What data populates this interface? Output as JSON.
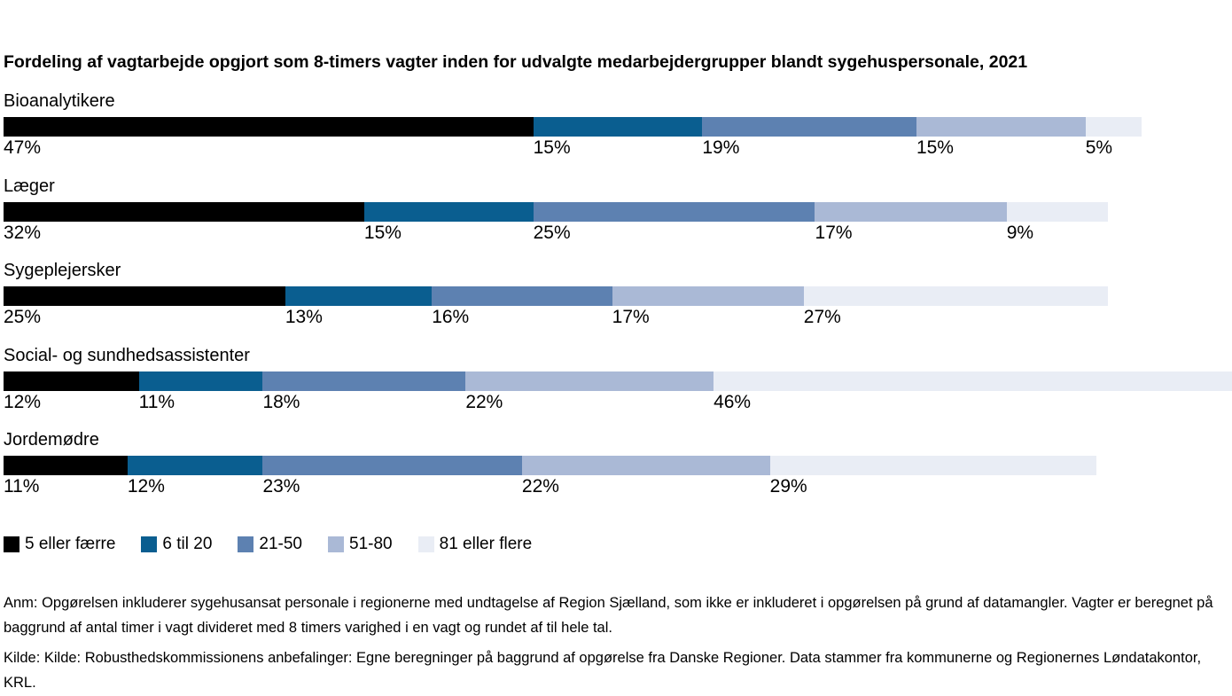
{
  "title": "Fordeling af vagtarbejde opgjort som 8-timers vagter inden for udvalgte medarbejdergrupper blandt sygehuspersonale, 2021",
  "chart_data": {
    "type": "bar",
    "orientation": "horizontal-stacked",
    "unit": "%",
    "title": "Fordeling af vagtarbejde opgjort som 8-timers vagter inden for udvalgte medarbejdergrupper blandt sygehuspersonale, 2021",
    "categories": [
      "Bioanalytikere",
      "Læger",
      "Sygeplejersker",
      "Social- og sundhedsassistenter",
      "Jordemødre"
    ],
    "series": [
      {
        "name": "5 eller færre",
        "color": "#000000",
        "values": [
          47,
          32,
          25,
          12,
          11
        ]
      },
      {
        "name": "6 til 20",
        "color": "#0a5e90",
        "values": [
          15,
          15,
          13,
          11,
          12
        ]
      },
      {
        "name": "21-50",
        "color": "#5d81b1",
        "values": [
          19,
          25,
          16,
          18,
          23
        ]
      },
      {
        "name": "51-80",
        "color": "#aab9d6",
        "values": [
          15,
          17,
          17,
          22,
          22
        ]
      },
      {
        "name": "81 eller flere",
        "color": "#e9edf5",
        "values": [
          5,
          9,
          27,
          46,
          29
        ]
      }
    ],
    "value_label_suffix": "%",
    "x_scale_max_sum": 109,
    "row_sums": [
      101,
      98,
      98,
      109,
      97
    ],
    "legend_position": "bottom",
    "grid": false
  },
  "footnotes": {
    "anm": "Anm: Opgørelsen inkluderer sygehusansat personale i regionerne med undtagelse af Region Sjælland, som ikke er inkluderet i opgørelsen på grund af datamangler. Vagter er beregnet på baggrund af antal timer i vagt divideret med 8 timers varighed i en vagt og rundet af til hele tal.",
    "kilde": "Kilde: Kilde: Robusthedskommissionens anbefalinger: Egne beregninger på baggrund af opgørelse fra Danske Regioner. Data stammer fra kommunerne og Regionernes Løndatakontor, KRL."
  }
}
